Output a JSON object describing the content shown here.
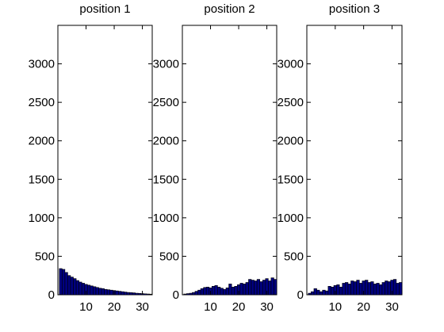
{
  "figure": {
    "background": "#ffffff"
  },
  "chart_data": [
    {
      "type": "bar",
      "title": "position 1",
      "xlabel": "",
      "ylabel": "",
      "xlim": [
        0,
        33.5
      ],
      "ylim": [
        0,
        3500
      ],
      "xticks": [
        10,
        20,
        30
      ],
      "yticks": [
        0,
        500,
        1000,
        1500,
        2000,
        2500,
        3000
      ],
      "bar_color": "#00007f",
      "x": [
        1,
        2,
        3,
        4,
        5,
        6,
        7,
        8,
        9,
        10,
        11,
        12,
        13,
        14,
        15,
        16,
        17,
        18,
        19,
        20,
        21,
        22,
        23,
        24,
        25,
        26,
        27,
        28,
        29,
        30,
        31,
        32,
        33
      ],
      "values": [
        340,
        330,
        290,
        250,
        230,
        210,
        185,
        165,
        150,
        135,
        125,
        115,
        105,
        95,
        85,
        80,
        70,
        65,
        60,
        55,
        50,
        45,
        40,
        35,
        30,
        28,
        25,
        20,
        18,
        15,
        12,
        10,
        8
      ]
    },
    {
      "type": "bar",
      "title": "position 2",
      "xlabel": "",
      "ylabel": "",
      "xlim": [
        0,
        33.5
      ],
      "ylim": [
        0,
        3500
      ],
      "xticks": [
        10,
        20,
        30
      ],
      "yticks": [
        0,
        500,
        1000,
        1500,
        2000,
        2500,
        3000
      ],
      "bar_color": "#00007f",
      "x": [
        1,
        2,
        3,
        4,
        5,
        6,
        7,
        8,
        9,
        10,
        11,
        12,
        13,
        14,
        15,
        16,
        17,
        18,
        19,
        20,
        21,
        22,
        23,
        24,
        25,
        26,
        27,
        28,
        29,
        30,
        31,
        32,
        33
      ],
      "values": [
        10,
        15,
        20,
        30,
        45,
        60,
        80,
        95,
        100,
        90,
        110,
        120,
        100,
        85,
        70,
        90,
        140,
        100,
        110,
        130,
        150,
        140,
        160,
        200,
        190,
        180,
        200,
        170,
        190,
        210,
        180,
        220,
        200
      ]
    },
    {
      "type": "bar",
      "title": "position 3",
      "xlabel": "",
      "ylabel": "",
      "xlim": [
        0,
        33.5
      ],
      "ylim": [
        0,
        3500
      ],
      "xticks": [
        10,
        20,
        30
      ],
      "yticks": [
        0,
        500,
        1000,
        1500,
        2000,
        2500,
        3000
      ],
      "bar_color": "#00007f",
      "x": [
        1,
        2,
        3,
        4,
        5,
        6,
        7,
        8,
        9,
        10,
        11,
        12,
        13,
        14,
        15,
        16,
        17,
        18,
        19,
        20,
        21,
        22,
        23,
        24,
        25,
        26,
        27,
        28,
        29,
        30,
        31,
        32,
        33
      ],
      "values": [
        20,
        40,
        80,
        60,
        40,
        60,
        50,
        110,
        100,
        120,
        130,
        100,
        150,
        160,
        140,
        180,
        170,
        190,
        150,
        180,
        190,
        160,
        170,
        140,
        150,
        130,
        160,
        180,
        170,
        190,
        200,
        150,
        160
      ]
    }
  ]
}
